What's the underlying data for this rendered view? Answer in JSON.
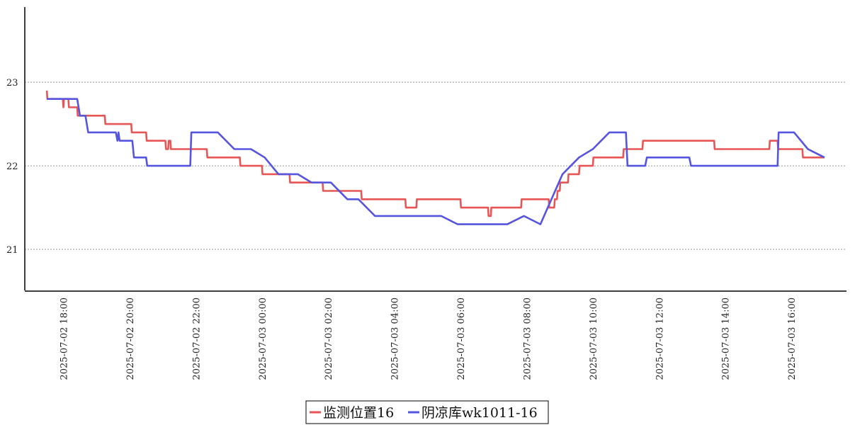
{
  "chart_data": {
    "type": "line",
    "title": "",
    "xlabel": "",
    "ylabel": "",
    "ylim": [
      20.5,
      23.9
    ],
    "xlim": [
      "2025-07-02 16:50",
      "2025-07-03 17:40"
    ],
    "grid": {
      "y": true,
      "x": false,
      "style": "dotted"
    },
    "legend_position": "bottom-center",
    "yticks": [
      {
        "value": 21,
        "label": "21"
      },
      {
        "value": 22,
        "label": "22"
      },
      {
        "value": 23,
        "label": "23"
      }
    ],
    "xticks": [
      {
        "value": "2025-07-02 18:00",
        "label": "2025-07-02  18:00"
      },
      {
        "value": "2025-07-02 20:00",
        "label": "2025-07-02  20:00"
      },
      {
        "value": "2025-07-02 22:00",
        "label": "2025-07-02  22:00"
      },
      {
        "value": "2025-07-03 00:00",
        "label": "2025-07-03  00:00"
      },
      {
        "value": "2025-07-03 02:00",
        "label": "2025-07-03  02:00"
      },
      {
        "value": "2025-07-03 04:00",
        "label": "2025-07-03  04:00"
      },
      {
        "value": "2025-07-03 06:00",
        "label": "2025-07-03  06:00"
      },
      {
        "value": "2025-07-03 08:00",
        "label": "2025-07-03  08:00"
      },
      {
        "value": "2025-07-03 10:00",
        "label": "2025-07-03  10:00"
      },
      {
        "value": "2025-07-03 12:00",
        "label": "2025-07-03  12:00"
      },
      {
        "value": "2025-07-03 14:00",
        "label": "2025-07-03  14:00"
      },
      {
        "value": "2025-07-03 16:00",
        "label": "2025-07-03  16:00"
      }
    ],
    "series": [
      {
        "name": "监测位置16",
        "color": "#e85555",
        "points": [
          [
            "2025-07-02 17:30",
            22.9
          ],
          [
            "2025-07-02 17:31",
            22.8
          ],
          [
            "2025-07-02 17:59",
            22.8
          ],
          [
            "2025-07-02 18:00",
            22.7
          ],
          [
            "2025-07-02 18:01",
            22.8
          ],
          [
            "2025-07-02 18:09",
            22.8
          ],
          [
            "2025-07-02 18:10",
            22.7
          ],
          [
            "2025-07-02 18:25",
            22.7
          ],
          [
            "2025-07-02 18:26",
            22.6
          ],
          [
            "2025-07-02 19:15",
            22.6
          ],
          [
            "2025-07-02 19:16",
            22.5
          ],
          [
            "2025-07-02 20:03",
            22.5
          ],
          [
            "2025-07-02 20:04",
            22.4
          ],
          [
            "2025-07-02 20:30",
            22.4
          ],
          [
            "2025-07-02 20:31",
            22.3
          ],
          [
            "2025-07-02 21:05",
            22.3
          ],
          [
            "2025-07-02 21:06",
            22.2
          ],
          [
            "2025-07-02 21:10",
            22.2
          ],
          [
            "2025-07-02 21:11",
            22.3
          ],
          [
            "2025-07-02 21:14",
            22.3
          ],
          [
            "2025-07-02 21:15",
            22.2
          ],
          [
            "2025-07-02 22:20",
            22.2
          ],
          [
            "2025-07-02 22:21",
            22.1
          ],
          [
            "2025-07-02 23:20",
            22.1
          ],
          [
            "2025-07-02 23:21",
            22.0
          ],
          [
            "2025-07-02 23:25",
            22.0
          ],
          [
            "2025-07-02 23:26",
            22.0
          ],
          [
            "2025-07-03 00:00",
            22.0
          ],
          [
            "2025-07-03 00:01",
            21.9
          ],
          [
            "2025-07-03 00:50",
            21.9
          ],
          [
            "2025-07-03 00:51",
            21.8
          ],
          [
            "2025-07-03 01:50",
            21.8
          ],
          [
            "2025-07-03 01:51",
            21.7
          ],
          [
            "2025-07-03 03:00",
            21.7
          ],
          [
            "2025-07-03 03:01",
            21.6
          ],
          [
            "2025-07-03 04:20",
            21.6
          ],
          [
            "2025-07-03 04:21",
            21.5
          ],
          [
            "2025-07-03 04:40",
            21.5
          ],
          [
            "2025-07-03 04:41",
            21.6
          ],
          [
            "2025-07-03 06:00",
            21.6
          ],
          [
            "2025-07-03 06:01",
            21.5
          ],
          [
            "2025-07-03 06:50",
            21.5
          ],
          [
            "2025-07-03 06:51",
            21.4
          ],
          [
            "2025-07-03 06:55",
            21.4
          ],
          [
            "2025-07-03 06:56",
            21.5
          ],
          [
            "2025-07-03 07:50",
            21.5
          ],
          [
            "2025-07-03 07:51",
            21.6
          ],
          [
            "2025-07-03 08:40",
            21.6
          ],
          [
            "2025-07-03 08:41",
            21.5
          ],
          [
            "2025-07-03 08:50",
            21.5
          ],
          [
            "2025-07-03 08:51",
            21.6
          ],
          [
            "2025-07-03 08:55",
            21.6
          ],
          [
            "2025-07-03 08:56",
            21.7
          ],
          [
            "2025-07-03 09:00",
            21.7
          ],
          [
            "2025-07-03 09:01",
            21.8
          ],
          [
            "2025-07-03 09:15",
            21.8
          ],
          [
            "2025-07-03 09:16",
            21.9
          ],
          [
            "2025-07-03 09:35",
            21.9
          ],
          [
            "2025-07-03 09:36",
            22.0
          ],
          [
            "2025-07-03 10:00",
            22.0
          ],
          [
            "2025-07-03 10:01",
            22.1
          ],
          [
            "2025-07-03 10:55",
            22.1
          ],
          [
            "2025-07-03 10:56",
            22.2
          ],
          [
            "2025-07-03 11:30",
            22.2
          ],
          [
            "2025-07-03 11:31",
            22.3
          ],
          [
            "2025-07-03 13:40",
            22.3
          ],
          [
            "2025-07-03 13:41",
            22.2
          ],
          [
            "2025-07-03 15:20",
            22.2
          ],
          [
            "2025-07-03 15:21",
            22.3
          ],
          [
            "2025-07-03 15:35",
            22.3
          ],
          [
            "2025-07-03 15:36",
            22.2
          ],
          [
            "2025-07-03 16:20",
            22.2
          ],
          [
            "2025-07-03 16:21",
            22.1
          ],
          [
            "2025-07-03 17:00",
            22.1
          ]
        ]
      },
      {
        "name": "阴凉库wk1011-16",
        "color": "#5555e0",
        "points": [
          [
            "2025-07-02 17:30",
            22.8
          ],
          [
            "2025-07-02 18:25",
            22.8
          ],
          [
            "2025-07-02 18:30",
            22.6
          ],
          [
            "2025-07-02 18:40",
            22.6
          ],
          [
            "2025-07-02 18:45",
            22.4
          ],
          [
            "2025-07-02 19:35",
            22.4
          ],
          [
            "2025-07-02 19:38",
            22.3
          ],
          [
            "2025-07-02 19:40",
            22.4
          ],
          [
            "2025-07-02 19:42",
            22.3
          ],
          [
            "2025-07-02 20:05",
            22.3
          ],
          [
            "2025-07-02 20:08",
            22.1
          ],
          [
            "2025-07-02 20:30",
            22.1
          ],
          [
            "2025-07-02 20:32",
            22.0
          ],
          [
            "2025-07-02 21:50",
            22.0
          ],
          [
            "2025-07-02 21:52",
            22.4
          ],
          [
            "2025-07-02 22:40",
            22.4
          ],
          [
            "2025-07-02 23:10",
            22.2
          ],
          [
            "2025-07-02 23:40",
            22.2
          ],
          [
            "2025-07-03 00:05",
            22.1
          ],
          [
            "2025-07-03 00:30",
            21.9
          ],
          [
            "2025-07-03 01:05",
            21.9
          ],
          [
            "2025-07-03 01:30",
            21.8
          ],
          [
            "2025-07-03 02:05",
            21.8
          ],
          [
            "2025-07-03 02:35",
            21.6
          ],
          [
            "2025-07-03 02:55",
            21.6
          ],
          [
            "2025-07-03 03:25",
            21.4
          ],
          [
            "2025-07-03 05:25",
            21.4
          ],
          [
            "2025-07-03 05:55",
            21.3
          ],
          [
            "2025-07-03 07:25",
            21.3
          ],
          [
            "2025-07-03 07:55",
            21.4
          ],
          [
            "2025-07-03 08:25",
            21.3
          ],
          [
            "2025-07-03 09:05",
            21.9
          ],
          [
            "2025-07-03 09:35",
            22.1
          ],
          [
            "2025-07-03 10:00",
            22.2
          ],
          [
            "2025-07-03 10:30",
            22.4
          ],
          [
            "2025-07-03 11:00",
            22.4
          ],
          [
            "2025-07-03 11:03",
            22.0
          ],
          [
            "2025-07-03 11:35",
            22.0
          ],
          [
            "2025-07-03 11:38",
            22.1
          ],
          [
            "2025-07-03 12:55",
            22.1
          ],
          [
            "2025-07-03 12:58",
            22.0
          ],
          [
            "2025-07-03 15:35",
            22.0
          ],
          [
            "2025-07-03 15:37",
            22.4
          ],
          [
            "2025-07-03 16:05",
            22.4
          ],
          [
            "2025-07-03 16:30",
            22.2
          ],
          [
            "2025-07-03 17:00",
            22.1
          ]
        ]
      }
    ]
  }
}
